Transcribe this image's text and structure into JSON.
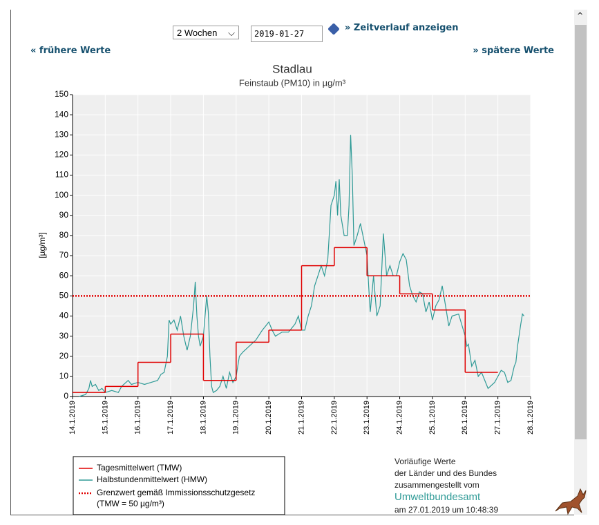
{
  "controls": {
    "period": "2 Wochen",
    "date": "2019-01-27",
    "show": "» Zeitverlauf anzeigen",
    "earlier": "« frühere Werte",
    "later": "» spätere Werte"
  },
  "chart_data": {
    "type": "line",
    "title": "Stadlau",
    "subtitle": "Feinstaub (PM10) in µg/m³",
    "y_label": "[µg/m³]",
    "xlim": [
      0,
      14
    ],
    "ylim": [
      0,
      150
    ],
    "xticks": [
      {
        "value": 0,
        "label": "14.1.2019"
      },
      {
        "value": 1,
        "label": "15.1.2019"
      },
      {
        "value": 2,
        "label": "16.1.2019"
      },
      {
        "value": 3,
        "label": "17.1.2019"
      },
      {
        "value": 4,
        "label": "18.1.2019"
      },
      {
        "value": 5,
        "label": "19.1.2019"
      },
      {
        "value": 6,
        "label": "20.1.2019"
      },
      {
        "value": 7,
        "label": "21.1.2019"
      },
      {
        "value": 8,
        "label": "22.1.2019"
      },
      {
        "value": 9,
        "label": "23.1.2019"
      },
      {
        "value": 10,
        "label": "24.1.2019"
      },
      {
        "value": 11,
        "label": "25.1.2019"
      },
      {
        "value": 12,
        "label": "26.1.2019"
      },
      {
        "value": 13,
        "label": "27.1.2019"
      },
      {
        "value": 14,
        "label": "28.1.2019"
      }
    ],
    "yticks": [
      0,
      10,
      20,
      30,
      40,
      50,
      60,
      70,
      80,
      90,
      100,
      110,
      120,
      130,
      140,
      150
    ],
    "grid": true,
    "series": [
      {
        "name": "Tagesmittelwert (TMW)",
        "color": "#e00000",
        "step": "post",
        "x": [
          0,
          1,
          2,
          3,
          4,
          5,
          6,
          7,
          8,
          9,
          10,
          11,
          12,
          13
        ],
        "values": [
          2,
          5,
          17,
          31,
          8,
          27,
          33,
          65,
          74,
          60,
          51,
          43,
          12,
          null
        ]
      },
      {
        "name": "Halbstundenmittelwert (HMW)",
        "color": "#2e9a96",
        "x": [
          0.2,
          0.4,
          0.5,
          0.55,
          0.6,
          0.7,
          0.8,
          0.9,
          1.0,
          1.2,
          1.4,
          1.5,
          1.7,
          1.8,
          2.0,
          2.2,
          2.4,
          2.6,
          2.7,
          2.8,
          2.9,
          2.95,
          3.0,
          3.1,
          3.2,
          3.3,
          3.4,
          3.5,
          3.6,
          3.7,
          3.75,
          3.8,
          3.85,
          3.9,
          4.0,
          4.1,
          4.15,
          4.2,
          4.25,
          4.3,
          4.4,
          4.5,
          4.6,
          4.7,
          4.8,
          4.9,
          5.0,
          5.1,
          5.2,
          5.4,
          5.6,
          5.8,
          6.0,
          6.1,
          6.2,
          6.4,
          6.6,
          6.8,
          6.9,
          7.0,
          7.1,
          7.2,
          7.3,
          7.4,
          7.5,
          7.6,
          7.7,
          7.8,
          7.9,
          8.0,
          8.05,
          8.1,
          8.15,
          8.2,
          8.3,
          8.4,
          8.45,
          8.5,
          8.55,
          8.6,
          8.7,
          8.8,
          8.9,
          9.0,
          9.05,
          9.1,
          9.2,
          9.3,
          9.4,
          9.5,
          9.6,
          9.7,
          9.8,
          9.9,
          10.0,
          10.1,
          10.2,
          10.3,
          10.4,
          10.5,
          10.6,
          10.7,
          10.8,
          10.9,
          11.0,
          11.1,
          11.2,
          11.3,
          11.4,
          11.5,
          11.6,
          11.8,
          12.0,
          12.05,
          12.1,
          12.2,
          12.3,
          12.4,
          12.5,
          12.7,
          12.9,
          13.1,
          13.2,
          13.3,
          13.4,
          13.5,
          13.55,
          13.6,
          13.7,
          13.75,
          13.8
        ],
        "values": [
          0,
          1,
          4,
          8,
          5,
          6,
          3,
          4,
          2,
          3,
          2,
          5,
          8,
          6,
          7,
          6,
          7,
          8,
          11,
          12,
          20,
          38,
          36,
          38,
          33,
          40,
          30,
          23,
          30,
          45,
          57,
          40,
          30,
          25,
          30,
          50,
          42,
          20,
          5,
          2,
          3,
          5,
          10,
          4,
          12,
          7,
          10,
          20,
          22,
          25,
          28,
          33,
          37,
          33,
          30,
          32,
          32,
          36,
          40,
          33,
          33,
          40,
          45,
          55,
          60,
          65,
          60,
          68,
          95,
          100,
          107,
          90,
          108,
          90,
          80,
          80,
          95,
          130,
          110,
          75,
          80,
          86,
          78,
          70,
          55,
          42,
          60,
          40,
          45,
          81,
          60,
          65,
          60,
          60,
          67,
          71,
          68,
          55,
          50,
          47,
          52,
          51,
          42,
          47,
          38,
          45,
          48,
          55,
          45,
          35,
          40,
          41,
          30,
          25,
          26,
          15,
          18,
          10,
          12,
          4,
          7,
          13,
          12,
          7,
          8,
          15,
          17,
          25,
          36,
          41,
          40
        ]
      }
    ],
    "limit": {
      "name": "Grenzwert gemäß Immissionsschutzgesetz",
      "note": "(TMW = 50 µg/m³)",
      "value": 50,
      "color": "#e00000"
    },
    "source_lines": [
      "Vorläufige Werte",
      "der Länder und des Bundes",
      "zusammengestellt vom",
      "Umweltbundesamt",
      "am 27.01.2019 um 10:48:39"
    ]
  }
}
